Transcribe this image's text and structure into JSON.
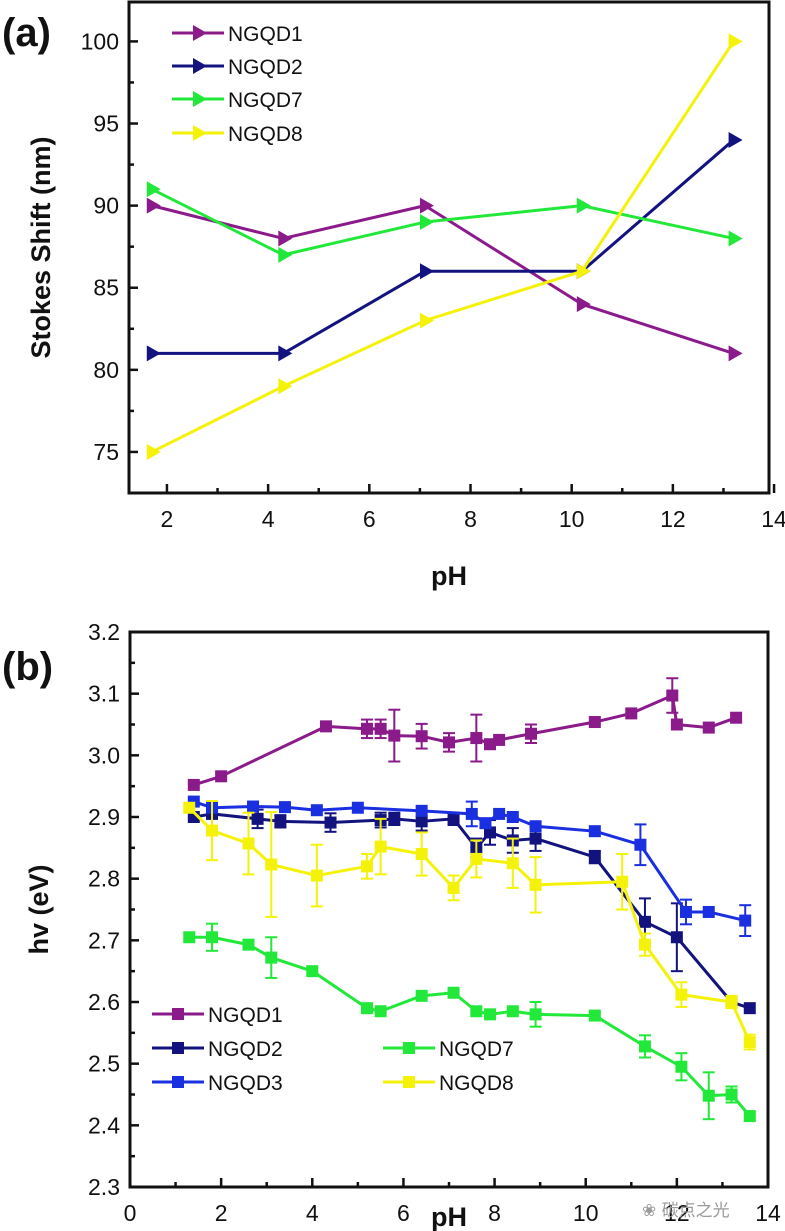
{
  "chart_data": [
    {
      "panel": "(a)",
      "type": "line",
      "marker": "right-triangle",
      "xlabel": "pH",
      "ylabel": "Stokes Shift (nm)",
      "xlim": [
        1.25,
        13.9
      ],
      "ylim": [
        72.5,
        102.4
      ],
      "xticks": [
        2,
        4,
        6,
        8,
        10,
        12,
        14
      ],
      "yticks": [
        75,
        80,
        85,
        90,
        95,
        100
      ],
      "grid": false,
      "legend_position": "top-left",
      "x": [
        1.7,
        4.3,
        7.1,
        10.2,
        13.2
      ],
      "series": [
        {
          "name": "NGQD1",
          "color": "#8B1A8B",
          "values": [
            90,
            88,
            90,
            84,
            81
          ]
        },
        {
          "name": "NGQD2",
          "color": "#13137F",
          "values": [
            81,
            81,
            86,
            86,
            94
          ]
        },
        {
          "name": "NGQD7",
          "color": "#22E83A",
          "values": [
            91,
            87,
            89,
            90,
            88
          ]
        },
        {
          "name": "NGQD8",
          "color": "#F5F20A",
          "values": [
            75,
            79,
            83,
            86,
            100
          ]
        }
      ]
    },
    {
      "panel": "(b)",
      "type": "line",
      "marker": "square",
      "xlabel": "pH",
      "ylabel": "hv (eV)",
      "xlim": [
        0,
        14
      ],
      "ylim": [
        2.3,
        3.2
      ],
      "xticks": [
        0,
        2,
        4,
        6,
        8,
        10,
        12,
        14
      ],
      "yticks": [
        2.3,
        2.4,
        2.5,
        2.6,
        2.7,
        2.8,
        2.9,
        3.0,
        3.1,
        3.2
      ],
      "grid": false,
      "legend_position": "bottom-left",
      "series": [
        {
          "name": "NGQD1",
          "color": "#8B1A8B",
          "x": [
            1.4,
            2.0,
            4.3,
            5.2,
            5.5,
            5.8,
            6.4,
            7.0,
            7.6,
            7.9,
            8.1,
            8.8,
            10.2,
            11.0,
            11.9,
            12.0,
            12.7,
            13.3
          ],
          "values": [
            2.952,
            2.966,
            3.047,
            3.043,
            3.043,
            3.032,
            3.031,
            3.021,
            3.028,
            3.018,
            3.025,
            3.035,
            3.054,
            3.068,
            3.097,
            3.05,
            3.045,
            3.061
          ],
          "errors": [
            0,
            0,
            0,
            0.015,
            0.015,
            0.042,
            0.02,
            0.015,
            0.038,
            0,
            0,
            0.015,
            0,
            0,
            0.028,
            0,
            0,
            0
          ]
        },
        {
          "name": "NGQD2",
          "color": "#13137F",
          "x": [
            1.4,
            1.8,
            2.8,
            3.3,
            4.4,
            5.5,
            5.8,
            6.4,
            7.1,
            7.6,
            7.9,
            8.4,
            8.9,
            10.2,
            11.3,
            12.0,
            13.2,
            13.6
          ],
          "values": [
            2.9,
            2.905,
            2.897,
            2.893,
            2.891,
            2.895,
            2.897,
            2.893,
            2.897,
            2.85,
            2.875,
            2.862,
            2.865,
            2.835,
            2.73,
            2.705,
            2.6,
            2.59
          ],
          "errors": [
            0,
            0.02,
            0.015,
            0.01,
            0.015,
            0.012,
            0.01,
            0.015,
            0.01,
            0.015,
            0.02,
            0.02,
            0.02,
            0.01,
            0.038,
            0.055,
            0.005,
            0
          ]
        },
        {
          "name": "NGQD3",
          "color": "#1A2FE0",
          "x": [
            1.4,
            1.8,
            2.7,
            3.4,
            4.1,
            5.0,
            6.4,
            7.5,
            7.8,
            8.1,
            8.4,
            8.9,
            10.2,
            11.2,
            12.2,
            12.7,
            13.5
          ],
          "values": [
            2.925,
            2.915,
            2.917,
            2.916,
            2.911,
            2.915,
            2.91,
            2.905,
            2.89,
            2.905,
            2.9,
            2.885,
            2.877,
            2.855,
            2.746,
            2.746,
            2.732
          ],
          "errors": [
            0,
            0,
            0,
            0,
            0,
            0,
            0,
            0.02,
            0,
            0,
            0,
            0,
            0,
            0.033,
            0.02,
            0,
            0.025
          ]
        },
        {
          "name": "NGQD7",
          "color": "#22E83A",
          "x": [
            1.3,
            1.8,
            2.6,
            3.1,
            4.0,
            5.2,
            5.5,
            6.4,
            7.1,
            7.6,
            7.9,
            8.4,
            8.9,
            10.2,
            11.3,
            12.1,
            12.7,
            13.2,
            13.6
          ],
          "values": [
            2.705,
            2.705,
            2.693,
            2.672,
            2.65,
            2.59,
            2.585,
            2.61,
            2.615,
            2.585,
            2.58,
            2.585,
            2.58,
            2.578,
            2.528,
            2.495,
            2.448,
            2.45,
            2.415
          ],
          "errors": [
            0,
            0.022,
            0,
            0.033,
            0,
            0,
            0,
            0,
            0,
            0,
            0,
            0,
            0.02,
            0,
            0.018,
            0.022,
            0.038,
            0.013,
            0
          ]
        },
        {
          "name": "NGQD8",
          "color": "#F5F20A",
          "x": [
            1.3,
            1.8,
            2.6,
            3.1,
            4.1,
            5.2,
            5.5,
            6.4,
            7.1,
            7.6,
            8.4,
            8.9,
            10.8,
            11.3,
            12.1,
            13.2,
            13.6
          ],
          "values": [
            2.915,
            2.878,
            2.857,
            2.823,
            2.805,
            2.82,
            2.852,
            2.84,
            2.785,
            2.832,
            2.825,
            2.79,
            2.795,
            2.693,
            2.612,
            2.6,
            2.535
          ],
          "errors": [
            0,
            0.048,
            0.05,
            0.085,
            0.05,
            0.02,
            0.045,
            0.035,
            0.02,
            0.03,
            0.04,
            0.045,
            0.045,
            0.018,
            0.02,
            0.01,
            0.012
          ]
        }
      ]
    }
  ],
  "labels": {
    "panel_a": "(a)",
    "panel_b": "(b)",
    "a_xlabel": "pH",
    "a_ylabel": "Stokes Shift (nm)",
    "b_xlabel": "pH",
    "b_ylabel": "hv (eV)"
  },
  "watermark": "碳点之光"
}
